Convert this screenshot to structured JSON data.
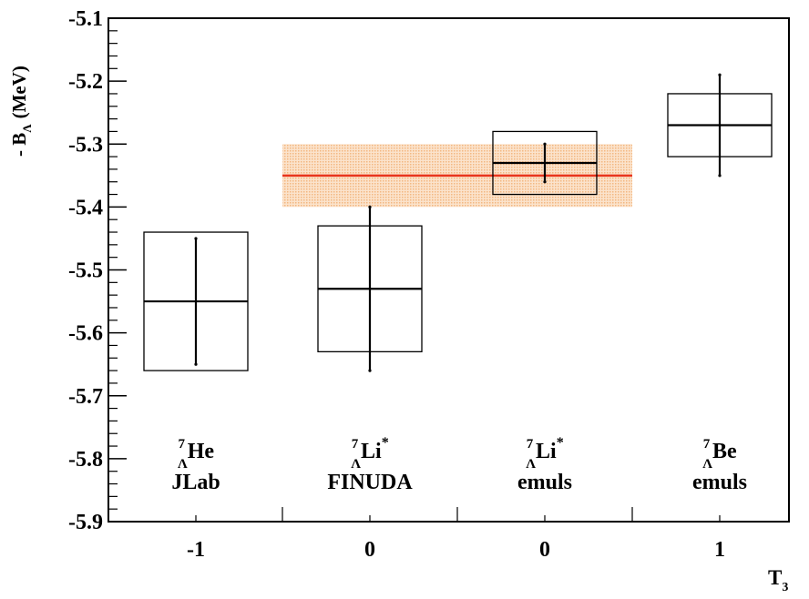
{
  "chart_data": {
    "type": "box-errorbar",
    "ylabel": "- B",
    "ylabel_subscript": "Λ",
    "ylabel_unit": "(MeV)",
    "xlabel": "T",
    "xlabel_subscript": "3",
    "ylim": [
      -5.9,
      -5.1
    ],
    "y_ticks": [
      "-5.1",
      "-5.2",
      "-5.3",
      "-5.4",
      "-5.5",
      "-5.6",
      "-5.7",
      "-5.8",
      "-5.9"
    ],
    "y_tick_values": [
      -5.1,
      -5.2,
      -5.3,
      -5.4,
      -5.5,
      -5.6,
      -5.7,
      -5.8,
      -5.9
    ],
    "x_ticks": [
      "-1",
      "0",
      "0",
      "1"
    ],
    "grid": false,
    "band": {
      "center": -5.35,
      "low": -5.4,
      "high": -5.3,
      "line_color": "#e8341c",
      "fill_color": "#f3b781"
    },
    "points": [
      {
        "mass_number": "7",
        "hyper": "Λ",
        "element": "He",
        "star": "",
        "source": "JLab",
        "x_label": "-1",
        "value": -5.55,
        "stat_low": -5.65,
        "stat_high": -5.45,
        "sys_low": -5.66,
        "sys_high": -5.44
      },
      {
        "mass_number": "7",
        "hyper": "Λ",
        "element": "Li",
        "star": "*",
        "source": "FINUDA",
        "x_label": "0",
        "value": -5.53,
        "stat_low": -5.66,
        "stat_high": -5.4,
        "sys_low": -5.63,
        "sys_high": -5.43
      },
      {
        "mass_number": "7",
        "hyper": "Λ",
        "element": "Li",
        "star": "*",
        "source": "emuls",
        "x_label": "0",
        "value": -5.33,
        "stat_low": -5.36,
        "stat_high": -5.3,
        "sys_low": -5.38,
        "sys_high": -5.28
      },
      {
        "mass_number": "7",
        "hyper": "Λ",
        "element": "Be",
        "star": "",
        "source": "emuls",
        "x_label": "1",
        "value": -5.27,
        "stat_low": -5.35,
        "stat_high": -5.19,
        "sys_low": -5.32,
        "sys_high": -5.22
      }
    ]
  }
}
